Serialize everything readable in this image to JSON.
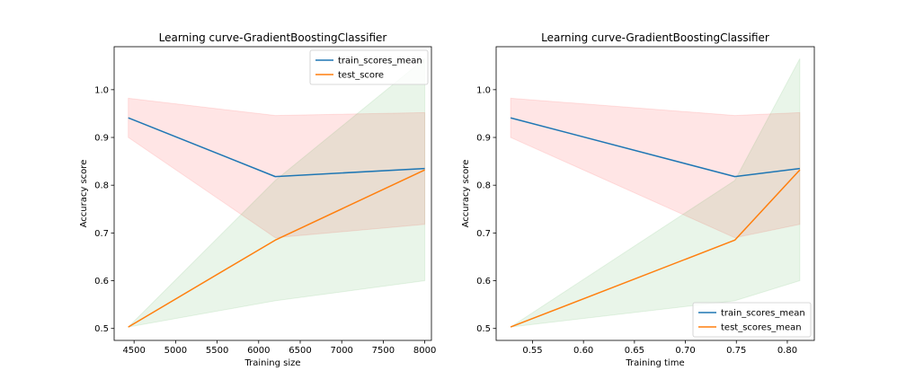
{
  "chart_data": [
    {
      "type": "line",
      "title": "Learning curve-GradientBoostingClassifier",
      "xlabel": "Training size",
      "ylabel": "Accuracy score",
      "xlim": [
        4260,
        8080
      ],
      "ylim": [
        0.475,
        1.09
      ],
      "xticks": [
        4500,
        5000,
        5500,
        6000,
        6500,
        7000,
        7500,
        8000
      ],
      "yticks": [
        0.5,
        0.6,
        0.7,
        0.8,
        0.9,
        1.0
      ],
      "xtick_labels": [
        "4500",
        "5000",
        "5500",
        "6000",
        "6500",
        "7000",
        "7500",
        "8000"
      ],
      "ytick_labels": [
        "0.5",
        "0.6",
        "0.7",
        "0.8",
        "0.9",
        "1.0"
      ],
      "grid": false,
      "legend_position": "top-right",
      "x": [
        4430,
        6200,
        8000
      ],
      "series": [
        {
          "name": "train_scores_mean",
          "color": "#1f77b4",
          "values": [
            0.941,
            0.818,
            0.835
          ],
          "band_upper": [
            0.982,
            0.946,
            0.952
          ],
          "band_lower": [
            0.9,
            0.69,
            0.718
          ],
          "band_color": "#ff0000"
        },
        {
          "name": "test_score",
          "color": "#ff7f0e",
          "values": [
            0.503,
            0.685,
            0.832
          ],
          "band_upper": [
            0.503,
            0.81,
            1.065
          ],
          "band_lower": [
            0.503,
            0.558,
            0.6
          ],
          "band_color": "#2ca02c"
        }
      ]
    },
    {
      "type": "line",
      "title": "Learning curve-GradientBoostingClassifier",
      "xlabel": "Training time",
      "ylabel": "Accuracy score",
      "xlim": [
        0.5143,
        0.8265
      ],
      "ylim": [
        0.475,
        1.09
      ],
      "xticks": [
        0.55,
        0.6,
        0.65,
        0.7,
        0.75,
        0.8
      ],
      "yticks": [
        0.5,
        0.6,
        0.7,
        0.8,
        0.9,
        1.0
      ],
      "xtick_labels": [
        "0.55",
        "0.60",
        "0.65",
        "0.70",
        "0.75",
        "0.80"
      ],
      "ytick_labels": [
        "0.5",
        "0.6",
        "0.7",
        "0.8",
        "0.9",
        "1.0"
      ],
      "grid": false,
      "legend_position": "bottom-right",
      "x": [
        0.5285,
        0.7485,
        0.8123
      ],
      "series": [
        {
          "name": "train_scores_mean",
          "color": "#1f77b4",
          "values": [
            0.941,
            0.818,
            0.835
          ],
          "band_upper": [
            0.982,
            0.946,
            0.952
          ],
          "band_lower": [
            0.9,
            0.69,
            0.718
          ],
          "band_color": "#ff0000"
        },
        {
          "name": "test_scores_mean",
          "color": "#ff7f0e",
          "values": [
            0.503,
            0.685,
            0.832
          ],
          "band_upper": [
            0.503,
            0.81,
            1.065
          ],
          "band_lower": [
            0.503,
            0.558,
            0.6
          ],
          "band_color": "#2ca02c"
        }
      ]
    }
  ]
}
